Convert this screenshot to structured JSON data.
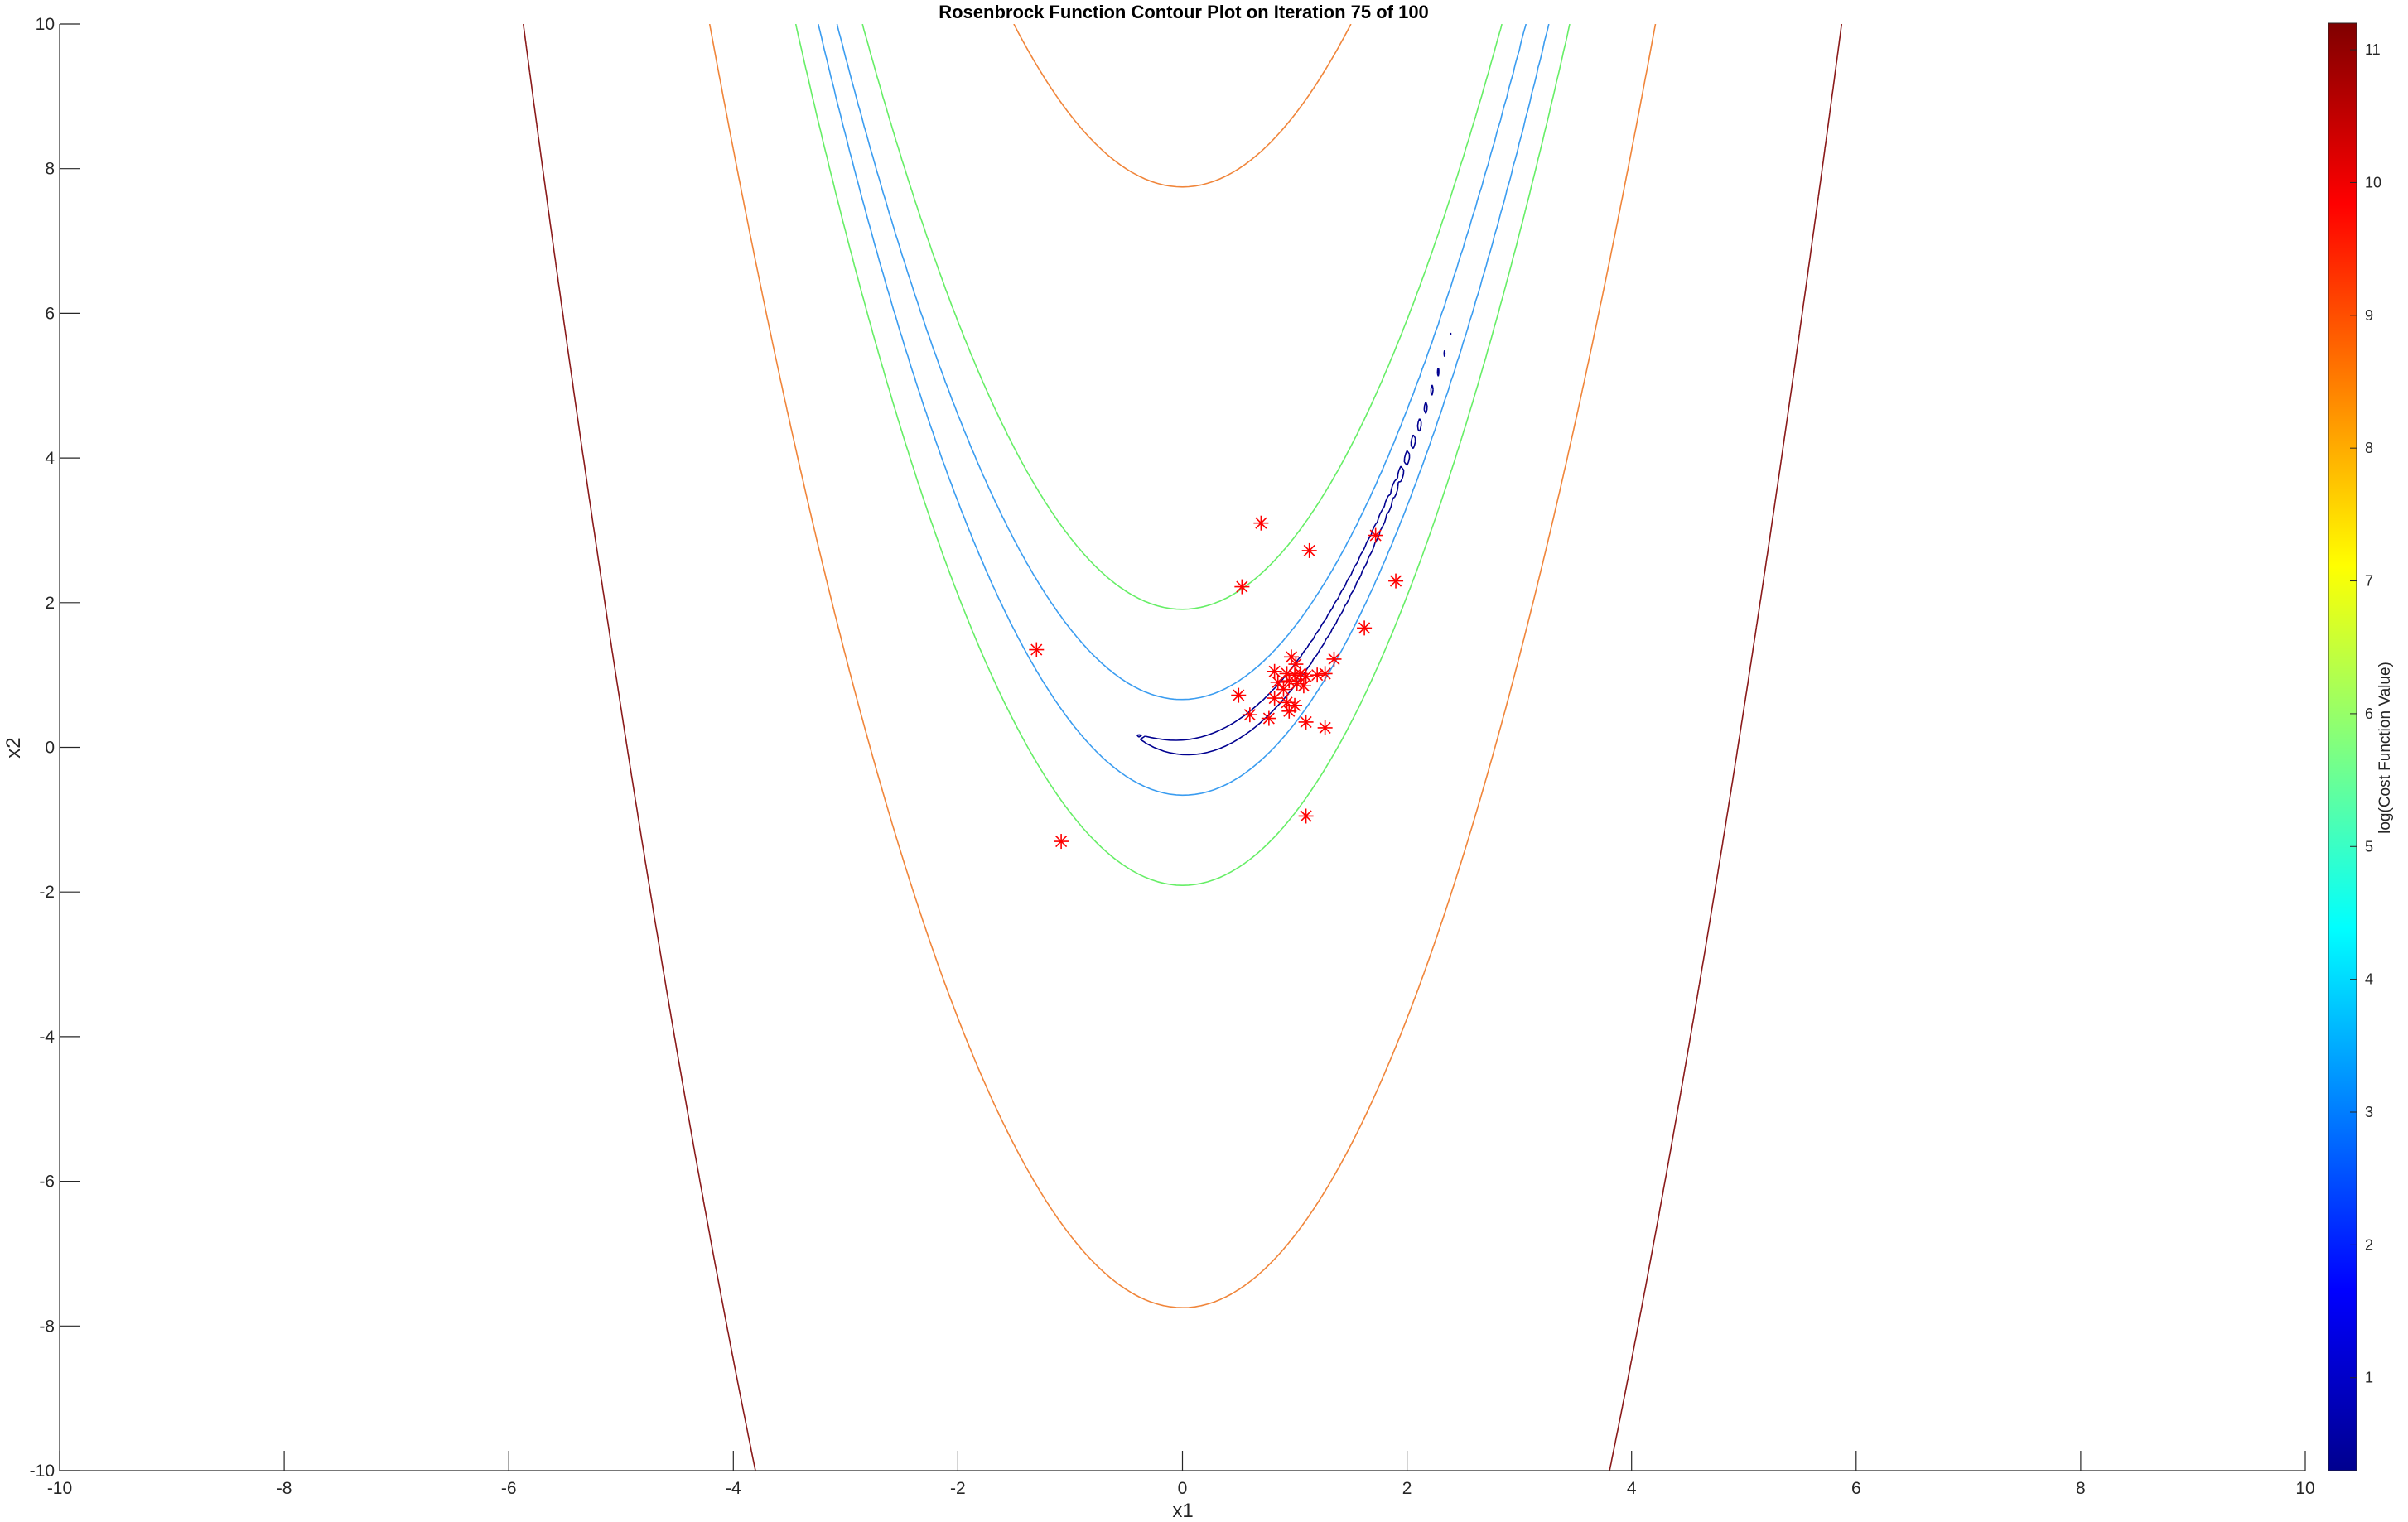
{
  "chart_data": {
    "type": "contour",
    "title": "Rosenbrock Function Contour Plot on Iteration 75 of 100",
    "xlabel": "x1",
    "ylabel": "x2",
    "xlim": [
      -10,
      10
    ],
    "ylim": [
      -10,
      10
    ],
    "xticks": [
      -10,
      -8,
      -6,
      -4,
      -2,
      0,
      2,
      4,
      6,
      8,
      10
    ],
    "yticks": [
      -10,
      -8,
      -6,
      -4,
      -2,
      0,
      2,
      4,
      6,
      8,
      10
    ],
    "grid": false,
    "colorbar": {
      "label": "log(Cost Function Value)",
      "range": [
        0.3,
        11.2
      ],
      "ticks": [
        1,
        2,
        3,
        4,
        5,
        6,
        7,
        8,
        9,
        10,
        11
      ]
    },
    "contour_levels": [
      {
        "log_value": 0.7,
        "color": "#00008f"
      },
      {
        "log_value": 3.8,
        "color": "#3a9cf0"
      },
      {
        "log_value": 5.9,
        "color": "#66ee66"
      },
      {
        "log_value": 8.7,
        "color": "#f0853a"
      },
      {
        "log_value": 11.0,
        "color": "#8a1a1a"
      }
    ],
    "particles": {
      "marker": "asterisk",
      "color": "#ff0000",
      "points": [
        [
          0.7,
          3.1
        ],
        [
          1.13,
          2.72
        ],
        [
          1.72,
          2.93
        ],
        [
          1.9,
          2.3
        ],
        [
          0.53,
          2.22
        ],
        [
          1.62,
          1.65
        ],
        [
          -1.3,
          1.35
        ],
        [
          1.35,
          1.22
        ],
        [
          0.97,
          1.25
        ],
        [
          1.01,
          1.15
        ],
        [
          0.82,
          1.05
        ],
        [
          0.93,
          1.02
        ],
        [
          1.0,
          1.0
        ],
        [
          1.05,
          1.02
        ],
        [
          1.1,
          0.98
        ],
        [
          1.2,
          1.0
        ],
        [
          1.27,
          1.02
        ],
        [
          0.85,
          0.9
        ],
        [
          0.95,
          0.92
        ],
        [
          0.9,
          0.8
        ],
        [
          1.02,
          0.88
        ],
        [
          1.08,
          0.85
        ],
        [
          0.5,
          0.72
        ],
        [
          0.82,
          0.68
        ],
        [
          0.93,
          0.62
        ],
        [
          1.0,
          0.58
        ],
        [
          0.95,
          0.5
        ],
        [
          0.6,
          0.45
        ],
        [
          0.77,
          0.4
        ],
        [
          1.1,
          0.35
        ],
        [
          1.27,
          0.27
        ],
        [
          1.1,
          -0.95
        ],
        [
          -1.08,
          -1.3
        ]
      ]
    }
  }
}
